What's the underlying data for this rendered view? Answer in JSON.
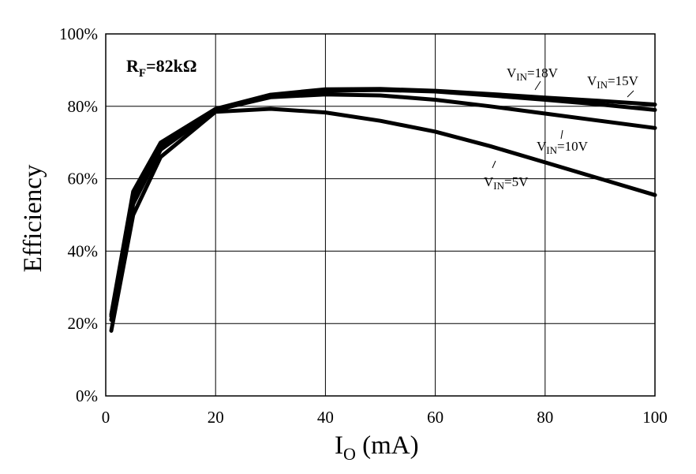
{
  "chart_data": {
    "type": "line",
    "title": "",
    "xlabel_main": "I",
    "xlabel_sub": "O",
    "xlabel_rest": " (mA)",
    "ylabel": "Efficiency",
    "xlim": [
      0,
      100
    ],
    "ylim": [
      0,
      100
    ],
    "xticks": [
      "0",
      "20",
      "40",
      "60",
      "80",
      "100"
    ],
    "yticks": [
      "0%",
      "20%",
      "40%",
      "60%",
      "80%",
      "100%"
    ],
    "grid": true,
    "annotation": {
      "main": "R",
      "sub": "F",
      "rest": "=82kΩ"
    },
    "series": [
      {
        "label_main": "V",
        "label_sub": "IN",
        "label_rest": "=5V",
        "x": [
          1,
          5,
          10,
          20,
          30,
          40,
          50,
          60,
          70,
          80,
          90,
          100
        ],
        "y": [
          18,
          50,
          66,
          78.5,
          79.3,
          78.3,
          76,
          73,
          69,
          64.5,
          60,
          55.5
        ]
      },
      {
        "label_main": "V",
        "label_sub": "IN",
        "label_rest": "=10V",
        "x": [
          1,
          5,
          10,
          20,
          30,
          40,
          50,
          60,
          70,
          80,
          90,
          100
        ],
        "y": [
          21,
          53,
          68,
          79,
          82.5,
          83.3,
          83,
          81.8,
          80,
          78,
          76,
          74
        ]
      },
      {
        "label_main": "V",
        "label_sub": "IN",
        "label_rest": "=15V",
        "x": [
          1,
          5,
          10,
          20,
          30,
          40,
          50,
          60,
          70,
          80,
          90,
          100
        ],
        "y": [
          22,
          55,
          69,
          79,
          82.8,
          84.3,
          84.5,
          84.1,
          83,
          81.8,
          80.5,
          79
        ]
      },
      {
        "label_main": "V",
        "label_sub": "IN",
        "label_rest": "=18V",
        "x": [
          1,
          5,
          10,
          20,
          30,
          40,
          50,
          60,
          70,
          80,
          90,
          100
        ],
        "y": [
          22.5,
          56.5,
          70,
          79.3,
          83.2,
          84.7,
          84.8,
          84.3,
          83.4,
          82.4,
          81.5,
          80.5
        ]
      }
    ]
  }
}
